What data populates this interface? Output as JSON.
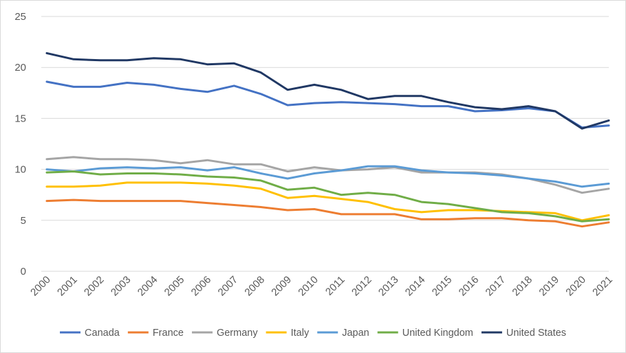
{
  "chart_data": {
    "type": "line",
    "title": "",
    "xlabel": "",
    "ylabel": "",
    "x": [
      "2000",
      "2001",
      "2002",
      "2003",
      "2004",
      "2005",
      "2006",
      "2007",
      "2008",
      "2009",
      "2010",
      "2011",
      "2012",
      "2013",
      "2014",
      "2015",
      "2016",
      "2017",
      "2018",
      "2019",
      "2020",
      "2021"
    ],
    "ylim": [
      0,
      25
    ],
    "yticks": [
      "0",
      "5",
      "10",
      "15",
      "20",
      "25"
    ],
    "grid": "horizontal",
    "legend": "bottom",
    "series": [
      {
        "name": "Canada",
        "color": "#4472c4",
        "values": [
          18.6,
          18.1,
          18.1,
          18.5,
          18.3,
          17.9,
          17.6,
          18.2,
          17.4,
          16.3,
          16.5,
          16.6,
          16.5,
          16.4,
          16.2,
          16.2,
          15.7,
          15.8,
          16.0,
          15.7,
          14.1,
          14.3
        ]
      },
      {
        "name": "France",
        "color": "#ed7d31",
        "values": [
          6.9,
          7.0,
          6.9,
          6.9,
          6.9,
          6.9,
          6.7,
          6.5,
          6.3,
          6.0,
          6.1,
          5.6,
          5.6,
          5.6,
          5.1,
          5.1,
          5.2,
          5.2,
          5.0,
          4.9,
          4.4,
          4.8
        ]
      },
      {
        "name": "Germany",
        "color": "#a5a5a5",
        "values": [
          11.0,
          11.2,
          11.0,
          11.0,
          10.9,
          10.6,
          10.9,
          10.5,
          10.5,
          9.8,
          10.2,
          9.9,
          10.0,
          10.2,
          9.7,
          9.7,
          9.7,
          9.5,
          9.1,
          8.5,
          7.7,
          8.1
        ]
      },
      {
        "name": "Italy",
        "color": "#ffc000",
        "values": [
          8.3,
          8.3,
          8.4,
          8.7,
          8.7,
          8.7,
          8.6,
          8.4,
          8.1,
          7.2,
          7.4,
          7.1,
          6.8,
          6.1,
          5.8,
          6.0,
          6.0,
          5.9,
          5.8,
          5.7,
          5.0,
          5.5
        ]
      },
      {
        "name": "Japan",
        "color": "#5b9bd5",
        "values": [
          10.0,
          9.8,
          10.1,
          10.2,
          10.1,
          10.2,
          9.9,
          10.2,
          9.6,
          9.1,
          9.6,
          9.9,
          10.3,
          10.3,
          9.9,
          9.7,
          9.6,
          9.4,
          9.1,
          8.8,
          8.3,
          8.6
        ]
      },
      {
        "name": "United Kingdom",
        "color": "#70ad47",
        "values": [
          9.7,
          9.8,
          9.5,
          9.6,
          9.6,
          9.5,
          9.3,
          9.2,
          8.9,
          8.0,
          8.2,
          7.5,
          7.7,
          7.5,
          6.8,
          6.6,
          6.2,
          5.8,
          5.7,
          5.4,
          4.9,
          5.1
        ]
      },
      {
        "name": "United States",
        "color": "#203864",
        "values": [
          21.4,
          20.8,
          20.7,
          20.7,
          20.9,
          20.8,
          20.3,
          20.4,
          19.5,
          17.8,
          18.3,
          17.8,
          16.9,
          17.2,
          17.2,
          16.6,
          16.1,
          15.9,
          16.2,
          15.7,
          14.0,
          14.8
        ]
      }
    ]
  }
}
